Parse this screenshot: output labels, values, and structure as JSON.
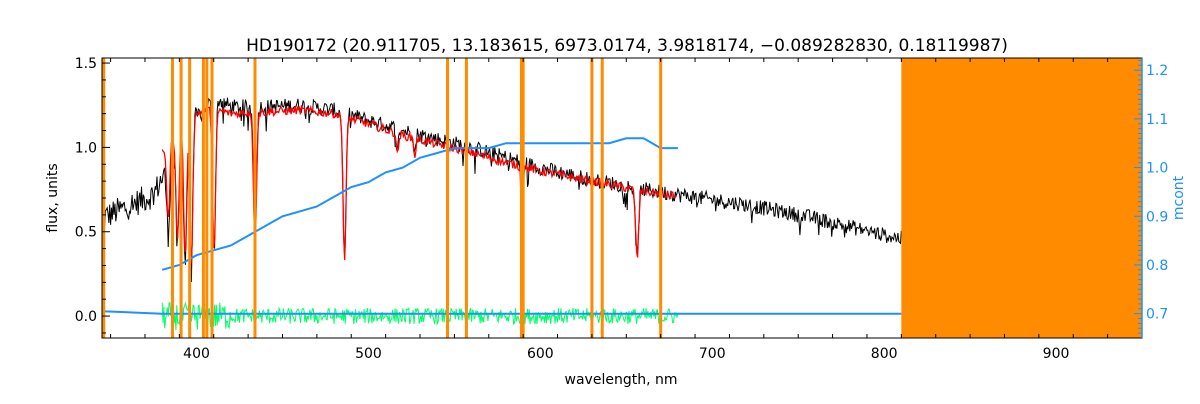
{
  "chart_data": {
    "type": "line",
    "title": "HD190172   (20.911705, 13.183615, 6973.0174, 3.9818174, −0.089282830, 0.18119987)",
    "xlabel": "wavelength, nm",
    "ylabel": "flux, units",
    "y2label": "mcont",
    "xlim": [
      345,
      950
    ],
    "ylim": [
      -0.13,
      1.53
    ],
    "y2lim": [
      0.65,
      1.225
    ],
    "xticks": [
      400,
      500,
      600,
      700,
      800,
      900
    ],
    "xtick_labels": [
      "400",
      "500",
      "600",
      "700",
      "800",
      "900"
    ],
    "yticks": [
      0.0,
      0.5,
      1.0,
      1.5
    ],
    "ytick_labels": [
      "0.0",
      "0.5",
      "1.0",
      "1.5"
    ],
    "y2ticks": [
      0.7,
      0.8,
      0.9,
      1.0,
      1.1,
      1.2
    ],
    "y2tick_labels": [
      "0.7",
      "0.8",
      "0.9",
      "1.0",
      "1.1",
      "1.2"
    ],
    "grid": false,
    "colors": {
      "observed": "#000000",
      "model": "#ff0000",
      "mcont": "#1e90ff",
      "residual": "#00ff66",
      "mask": "#ff8c00"
    },
    "masked_region": [
      810,
      950
    ],
    "mask_lines": [
      346,
      386,
      391,
      396,
      404,
      406,
      409,
      434,
      546,
      557,
      589,
      590,
      630,
      636,
      670
    ],
    "absorption_lines": [
      {
        "x": 383.5,
        "depth": 0.45
      },
      {
        "x": 388.9,
        "depth": 0.6
      },
      {
        "x": 393.4,
        "depth": 0.7
      },
      {
        "x": 396.9,
        "depth": 0.75
      },
      {
        "x": 410.2,
        "depth": 0.7
      },
      {
        "x": 434.0,
        "depth": 0.65
      },
      {
        "x": 486.1,
        "depth": 0.72
      },
      {
        "x": 516.9,
        "depth": 0.12
      },
      {
        "x": 527.0,
        "depth": 0.1
      },
      {
        "x": 589.3,
        "depth": 0.3
      },
      {
        "x": 656.3,
        "depth": 0.55
      }
    ],
    "series": [
      {
        "kind": "observed",
        "x": [
          345,
          360,
          375,
          385,
          400,
          410,
          420,
          440,
          460,
          480,
          500,
          520,
          540,
          560,
          580,
          600,
          620,
          640,
          660,
          680,
          700,
          720,
          740,
          760,
          780,
          800,
          810
        ],
        "y": [
          0.58,
          0.65,
          0.72,
          0.92,
          1.18,
          1.3,
          1.24,
          1.24,
          1.25,
          1.22,
          1.16,
          1.1,
          1.05,
          1.0,
          0.94,
          0.88,
          0.83,
          0.79,
          0.75,
          0.72,
          0.69,
          0.66,
          0.62,
          0.58,
          0.53,
          0.48,
          0.46
        ]
      },
      {
        "kind": "model",
        "x": [
          380,
          390,
          400,
          410,
          420,
          440,
          460,
          480,
          500,
          520,
          540,
          560,
          580,
          600,
          620,
          640,
          660,
          680
        ],
        "y": [
          0.98,
          1.1,
          1.2,
          1.23,
          1.2,
          1.21,
          1.22,
          1.2,
          1.14,
          1.07,
          1.02,
          0.97,
          0.91,
          0.86,
          0.82,
          0.78,
          0.74,
          0.71
        ]
      },
      {
        "kind": "mcont",
        "axis": "y2",
        "x": [
          380,
          390,
          400,
          410,
          420,
          430,
          440,
          450,
          460,
          470,
          480,
          490,
          500,
          510,
          520,
          530,
          540,
          550,
          560,
          570,
          580,
          590,
          600,
          620,
          640,
          650,
          660,
          670,
          680
        ],
        "y": [
          0.79,
          0.8,
          0.82,
          0.83,
          0.84,
          0.86,
          0.88,
          0.9,
          0.91,
          0.92,
          0.94,
          0.96,
          0.97,
          0.99,
          1.0,
          1.02,
          1.03,
          1.04,
          1.04,
          1.04,
          1.05,
          1.05,
          1.05,
          1.05,
          1.05,
          1.06,
          1.06,
          1.04,
          1.04
        ]
      },
      {
        "kind": "mcont-baseline",
        "axis": "y2",
        "x": [
          345,
          380,
          500,
          680,
          810
        ],
        "y": [
          0.705,
          0.7,
          0.7,
          0.7,
          0.7
        ]
      },
      {
        "kind": "residual",
        "x": [
          380,
          680
        ],
        "y": [
          0.0,
          0.0
        ],
        "noise": 0.06
      }
    ]
  }
}
